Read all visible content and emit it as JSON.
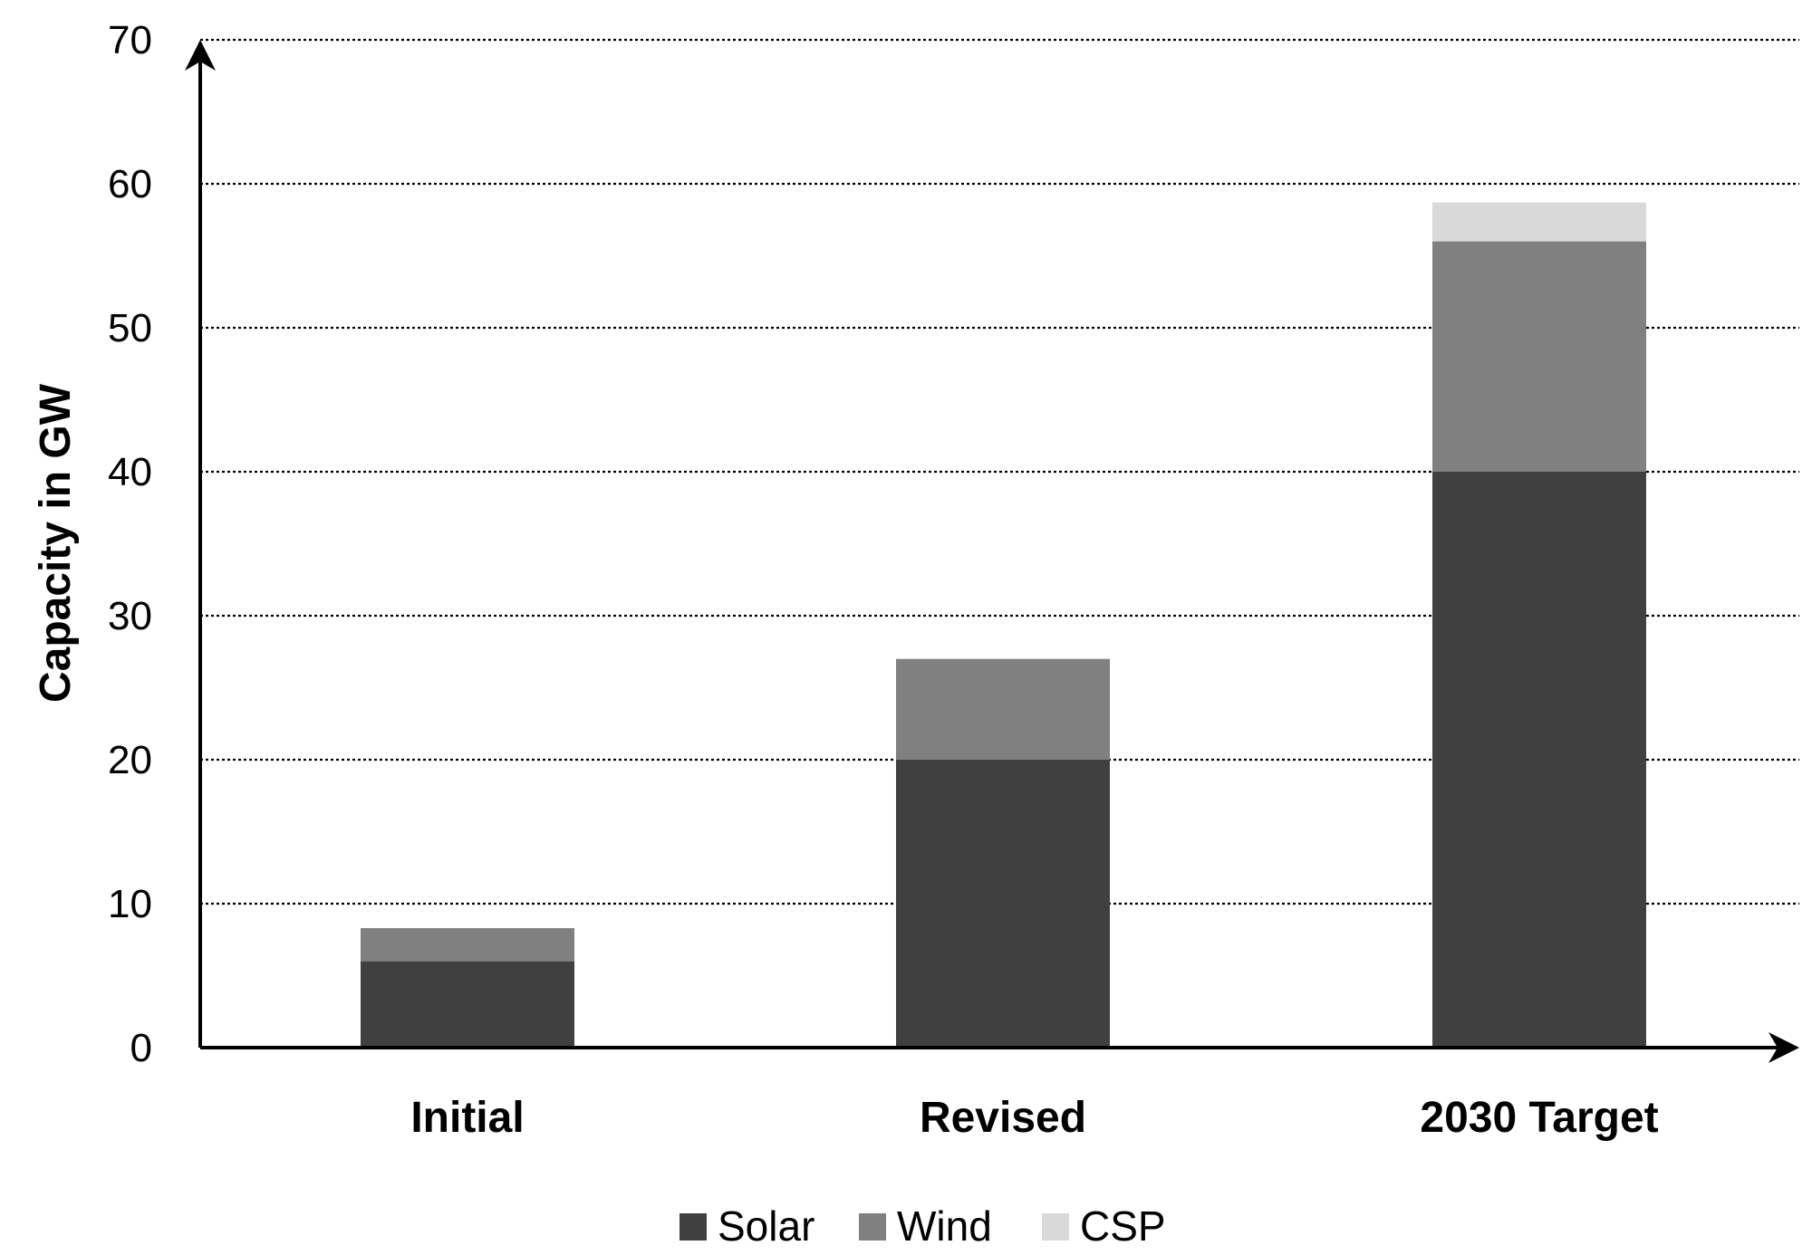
{
  "chart_data": {
    "type": "bar",
    "stacked": true,
    "categories": [
      "Initial",
      "Revised",
      "2030 Target"
    ],
    "series": [
      {
        "name": "Solar",
        "values": [
          6,
          20,
          40
        ],
        "color": "#404040"
      },
      {
        "name": "Wind",
        "values": [
          2.3,
          7,
          16
        ],
        "color": "#808080"
      },
      {
        "name": "CSP",
        "values": [
          0,
          0,
          2.7
        ],
        "color": "#d9d9d9"
      }
    ],
    "title": "",
    "xlabel": "",
    "ylabel": "Capacity in GW",
    "ylim": [
      0,
      70
    ],
    "yticks": [
      0,
      10,
      20,
      30,
      40,
      50,
      60,
      70
    ],
    "grid": true,
    "legend_position": "bottom-center"
  }
}
